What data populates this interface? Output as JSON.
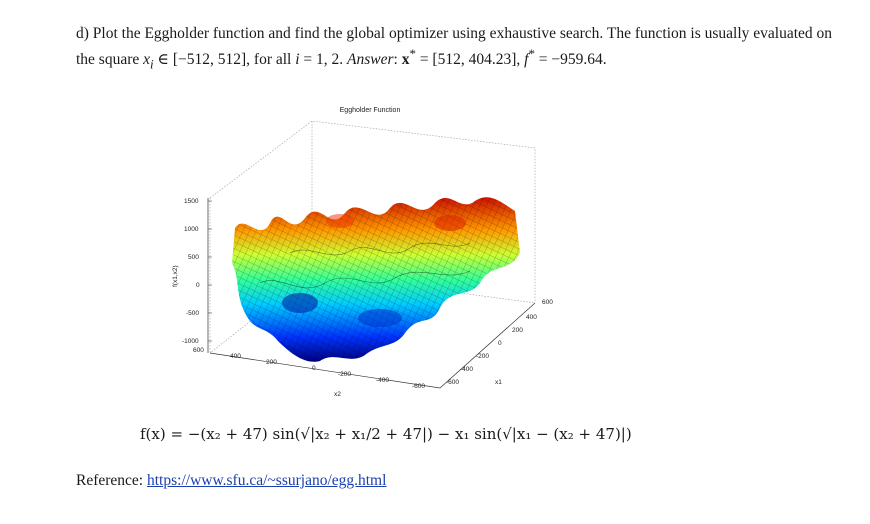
{
  "problem": {
    "lead": "d) Plot the Eggholder function and find the global optimizer using exhaustive search. The function is usually evaluated on the square ",
    "domain": "x",
    "domain_sub": "i",
    "domain_in": " ∈ [−512, 512], for all ",
    "i_var": "i",
    "i_vals": " = 1, 2. ",
    "answer_label": "Answer",
    "answer_x": "x",
    "answer_x_val": " = [512, 404.23], ",
    "answer_f": "f",
    "answer_f_val": " = −959.64."
  },
  "figure": {
    "title": "Eggholder Function",
    "zlabel": "f(x1,x2)",
    "xlabel": "x1",
    "ylabel": "x2",
    "zticks": [
      "1500",
      "1000",
      "500",
      "0",
      "-500",
      "-1000"
    ],
    "x1ticks": [
      "600",
      "400",
      "200",
      "0",
      "-200",
      "-400",
      "-600"
    ],
    "x2ticks": [
      "600",
      "400",
      "200",
      "0",
      "-200",
      "-400",
      "-600"
    ]
  },
  "formula": {
    "text": "f(x) = −(x₂ + 47) sin(√|x₂ + x₁/2 + 47|) − x₁ sin(√|x₁ − (x₂ + 47)|)"
  },
  "reference": {
    "label": "Reference: ",
    "link": "https://www.sfu.ca/~ssurjano/egg.html"
  }
}
